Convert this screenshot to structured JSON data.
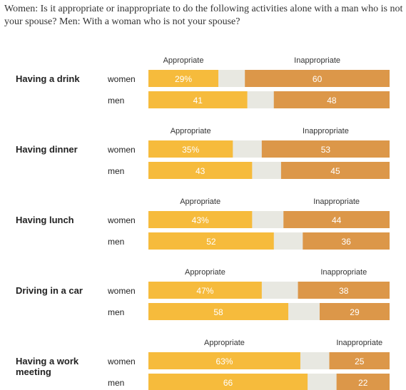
{
  "question": "Women: Is it appropriate or inappropriate to do the following activities alone with a man who is not your spouse? Men: With a woman who is not your spouse?",
  "colors": {
    "appropriate": "#f6bb3c",
    "neutral": "#e8e8e1",
    "inappropriate": "#dc9749"
  },
  "chart_data": {
    "type": "bar",
    "orientation": "horizontal",
    "stacked": true,
    "title": "Women: Is it appropriate or inappropriate to do the following activities alone with a man who is not your spouse? Men: With a woman who is not your spouse?",
    "legend_labels": [
      "Appropriate",
      "Inappropriate"
    ],
    "xlim": [
      0,
      100
    ],
    "categories": [
      {
        "label": "Having a drink",
        "rows": [
          {
            "group": "women",
            "appropriate": 29,
            "appropriate_label": "29%",
            "inappropriate": 60,
            "inappropriate_label": "60"
          },
          {
            "group": "men",
            "appropriate": 41,
            "appropriate_label": "41",
            "inappropriate": 48,
            "inappropriate_label": "48"
          }
        ]
      },
      {
        "label": "Having dinner",
        "rows": [
          {
            "group": "women",
            "appropriate": 35,
            "appropriate_label": "35%",
            "inappropriate": 53,
            "inappropriate_label": "53"
          },
          {
            "group": "men",
            "appropriate": 43,
            "appropriate_label": "43",
            "inappropriate": 45,
            "inappropriate_label": "45"
          }
        ]
      },
      {
        "label": "Having lunch",
        "rows": [
          {
            "group": "women",
            "appropriate": 43,
            "appropriate_label": "43%",
            "inappropriate": 44,
            "inappropriate_label": "44"
          },
          {
            "group": "men",
            "appropriate": 52,
            "appropriate_label": "52",
            "inappropriate": 36,
            "inappropriate_label": "36"
          }
        ]
      },
      {
        "label": "Driving in a car",
        "rows": [
          {
            "group": "women",
            "appropriate": 47,
            "appropriate_label": "47%",
            "inappropriate": 38,
            "inappropriate_label": "38"
          },
          {
            "group": "men",
            "appropriate": 58,
            "appropriate_label": "58",
            "inappropriate": 29,
            "inappropriate_label": "29"
          }
        ]
      },
      {
        "label": "Having a work meeting",
        "label_lines": [
          "Having a work",
          "meeting"
        ],
        "rows": [
          {
            "group": "women",
            "appropriate": 63,
            "appropriate_label": "63%",
            "inappropriate": 25,
            "inappropriate_label": "25"
          },
          {
            "group": "men",
            "appropriate": 66,
            "appropriate_label": "66",
            "inappropriate": 22,
            "inappropriate_label": "22"
          }
        ]
      }
    ]
  }
}
